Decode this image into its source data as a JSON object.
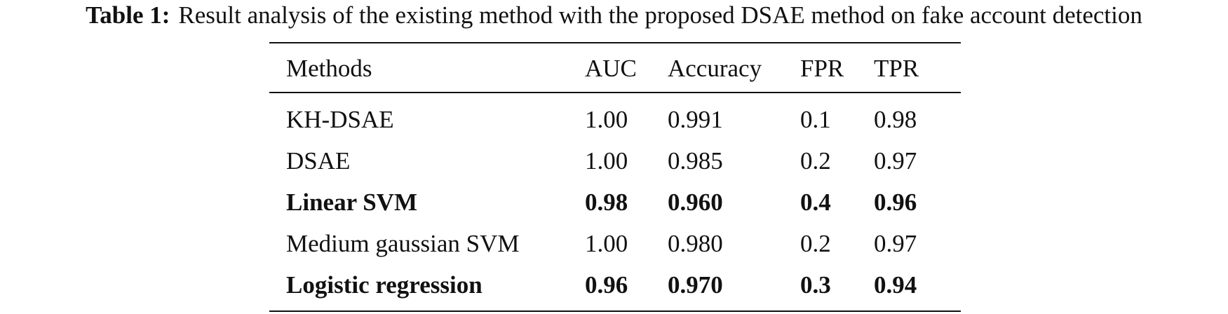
{
  "caption": {
    "label": "Table 1:",
    "text": "Result analysis of the existing method with the proposed DSAE method on fake account detection"
  },
  "table": {
    "header": [
      "Methods",
      "AUC",
      "Accuracy",
      "FPR",
      "TPR"
    ],
    "rows": [
      {
        "cells": [
          "KH-DSAE",
          "1.00",
          "0.991",
          "0.1",
          "0.98"
        ],
        "bold": false
      },
      {
        "cells": [
          "DSAE",
          "1.00",
          "0.985",
          "0.2",
          "0.97"
        ],
        "bold": false
      },
      {
        "cells": [
          "Linear SVM",
          "0.98",
          "0.960",
          "0.4",
          "0.96"
        ],
        "bold": true
      },
      {
        "cells": [
          "Medium gaussian SVM",
          "1.00",
          "0.980",
          "0.2",
          "0.97"
        ],
        "bold": false
      },
      {
        "cells": [
          "Logistic regression",
          "0.96",
          "0.970",
          "0.3",
          "0.94"
        ],
        "bold": true
      }
    ]
  }
}
